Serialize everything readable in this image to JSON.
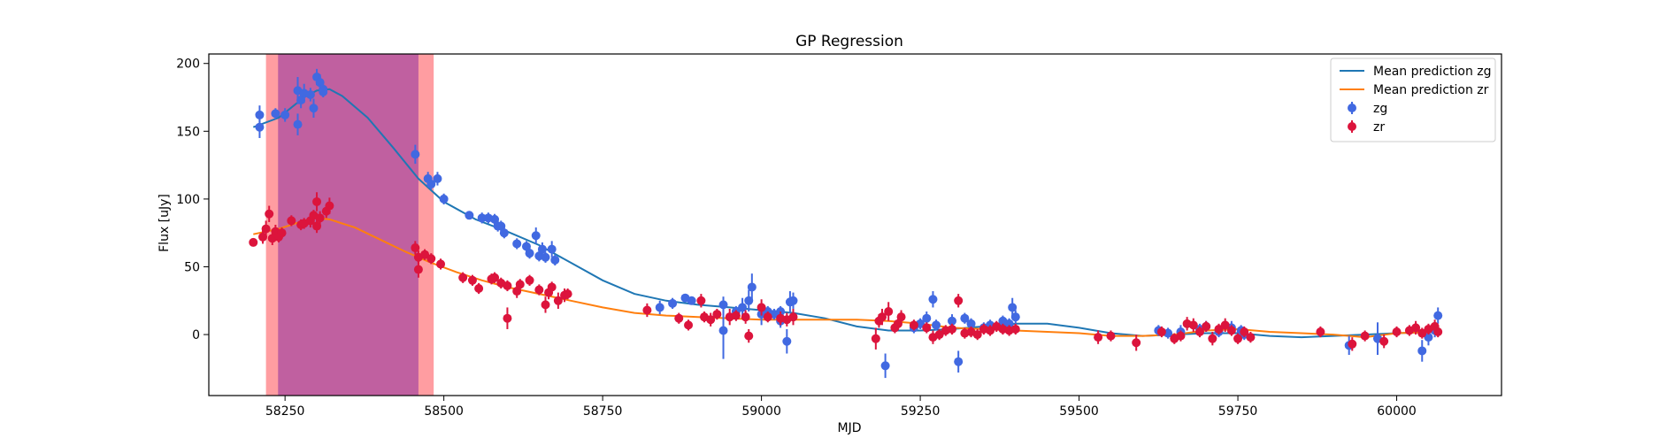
{
  "chart_data": {
    "type": "scatter",
    "title": "GP Regression",
    "xlabel": "MJD",
    "ylabel": "Flux [uJy]",
    "xlim": [
      58130,
      60165
    ],
    "ylim": [
      -45,
      207
    ],
    "xticks": [
      58250,
      58500,
      58750,
      59000,
      59250,
      59500,
      59750,
      60000
    ],
    "yticks": [
      0,
      50,
      100,
      150,
      200
    ],
    "grid": false,
    "legend_position": "top-right",
    "legend": [
      {
        "label": "Mean prediction zg",
        "kind": "line",
        "color": "#1f77b4"
      },
      {
        "label": "Mean prediction zr",
        "kind": "line",
        "color": "#ff7f0e"
      },
      {
        "label": "zg",
        "kind": "marker",
        "color": "#4169e1"
      },
      {
        "label": "zr",
        "kind": "marker",
        "color": "#dc143c"
      }
    ],
    "shaded_regions": [
      {
        "x0": 58220,
        "x1": 58484,
        "color": "#ff9da1"
      },
      {
        "x0": 58239,
        "x1": 58460,
        "color": "#c060a0"
      }
    ],
    "lines": [
      {
        "name": "Mean prediction zg",
        "color": "#1f77b4",
        "x": [
          58200,
          58240,
          58280,
          58300,
          58320,
          58340,
          58380,
          58420,
          58460,
          58500,
          58550,
          58600,
          58650,
          58700,
          58750,
          58800,
          58850,
          58900,
          58950,
          59000,
          59050,
          59100,
          59150,
          59200,
          59250,
          59300,
          59350,
          59400,
          59450,
          59500,
          59550,
          59600,
          59650,
          59700,
          59750,
          59800,
          59850,
          59900,
          59950,
          60000,
          60065
        ],
        "y": [
          153,
          160,
          175,
          180,
          181,
          176,
          160,
          138,
          115,
          98,
          85,
          76,
          66,
          53,
          40,
          30,
          25,
          22,
          20,
          18,
          16,
          12,
          6,
          3,
          3,
          4,
          6,
          8,
          8,
          5,
          1,
          -1,
          0,
          1,
          1,
          -1,
          -2,
          -1,
          0,
          1,
          2
        ]
      },
      {
        "name": "Mean prediction zr",
        "color": "#ff7f0e",
        "x": [
          58200,
          58240,
          58280,
          58300,
          58320,
          58360,
          58400,
          58440,
          58480,
          58520,
          58560,
          58600,
          58650,
          58700,
          58750,
          58800,
          58850,
          58900,
          58950,
          59000,
          59050,
          59100,
          59150,
          59200,
          59250,
          59300,
          59350,
          59400,
          59450,
          59500,
          59550,
          59600,
          59650,
          59700,
          59750,
          59800,
          59850,
          59900,
          59950,
          60000,
          60065
        ],
        "y": [
          74,
          78,
          84,
          86,
          85,
          79,
          70,
          61,
          53,
          46,
          40,
          35,
          30,
          25,
          20,
          16,
          14,
          13,
          12,
          11,
          11,
          11,
          11,
          10,
          8,
          5,
          4,
          3,
          2,
          1,
          -1,
          -1,
          0,
          3,
          4,
          2,
          1,
          0,
          -2,
          1,
          2
        ]
      }
    ],
    "series": [
      {
        "name": "zg",
        "color": "#4169e1",
        "points": [
          [
            58210,
            162,
            7
          ],
          [
            58210,
            153,
            8
          ],
          [
            58235,
            163,
            4
          ],
          [
            58250,
            162,
            5
          ],
          [
            58270,
            155,
            8
          ],
          [
            58270,
            180,
            10
          ],
          [
            58275,
            173,
            6
          ],
          [
            58280,
            178,
            7
          ],
          [
            58290,
            177,
            5
          ],
          [
            58295,
            167,
            7
          ],
          [
            58300,
            190,
            6
          ],
          [
            58305,
            186,
            6
          ],
          [
            58310,
            181,
            4
          ],
          [
            58310,
            179,
            4
          ],
          [
            58455,
            133,
            7
          ],
          [
            58475,
            115,
            5
          ],
          [
            58480,
            111,
            4
          ],
          [
            58490,
            115,
            5
          ],
          [
            58500,
            100,
            4
          ],
          [
            58540,
            88,
            3
          ],
          [
            58560,
            86,
            4
          ],
          [
            58570,
            86,
            4
          ],
          [
            58580,
            85,
            4
          ],
          [
            58585,
            80,
            4
          ],
          [
            58590,
            80,
            4
          ],
          [
            58595,
            75,
            4
          ],
          [
            58615,
            67,
            4
          ],
          [
            58630,
            65,
            4
          ],
          [
            58635,
            60,
            4
          ],
          [
            58645,
            73,
            6
          ],
          [
            58650,
            58,
            4
          ],
          [
            58655,
            63,
            5
          ],
          [
            58660,
            57,
            4
          ],
          [
            58670,
            63,
            6
          ],
          [
            58675,
            55,
            4
          ],
          [
            58840,
            20,
            5
          ],
          [
            58860,
            23,
            4
          ],
          [
            58880,
            27,
            3
          ],
          [
            58890,
            25,
            3
          ],
          [
            58940,
            3,
            21
          ],
          [
            58940,
            22,
            6
          ],
          [
            58960,
            17,
            4
          ],
          [
            58970,
            20,
            7
          ],
          [
            58980,
            25,
            8
          ],
          [
            58985,
            35,
            10
          ],
          [
            59000,
            15,
            8
          ],
          [
            59010,
            17,
            4
          ],
          [
            59020,
            15,
            4
          ],
          [
            59030,
            10,
            5
          ],
          [
            59030,
            17,
            4
          ],
          [
            59040,
            -5,
            9
          ],
          [
            59045,
            24,
            8
          ],
          [
            59050,
            25,
            6
          ],
          [
            59195,
            -23,
            9
          ],
          [
            59240,
            5,
            4
          ],
          [
            59250,
            8,
            4
          ],
          [
            59260,
            12,
            5
          ],
          [
            59270,
            26,
            6
          ],
          [
            59275,
            7,
            4
          ],
          [
            59300,
            10,
            5
          ],
          [
            59310,
            -20,
            8
          ],
          [
            59320,
            12,
            4
          ],
          [
            59330,
            8,
            4
          ],
          [
            59350,
            5,
            4
          ],
          [
            59360,
            7,
            4
          ],
          [
            59380,
            10,
            4
          ],
          [
            59390,
            8,
            4
          ],
          [
            59395,
            20,
            7
          ],
          [
            59400,
            13,
            5
          ],
          [
            59625,
            3,
            4
          ],
          [
            59640,
            1,
            4
          ],
          [
            59660,
            2,
            5
          ],
          [
            59690,
            4,
            4
          ],
          [
            59700,
            6,
            4
          ],
          [
            59720,
            2,
            4
          ],
          [
            59740,
            5,
            5
          ],
          [
            59755,
            3,
            4
          ],
          [
            59760,
            0,
            4
          ],
          [
            59925,
            -8,
            7
          ],
          [
            59970,
            -3,
            12
          ],
          [
            60040,
            -12,
            8
          ],
          [
            60050,
            -2,
            6
          ],
          [
            60060,
            3,
            5
          ],
          [
            60065,
            14,
            6
          ]
        ]
      },
      {
        "name": "zr",
        "color": "#dc143c",
        "points": [
          [
            58200,
            68,
            3
          ],
          [
            58215,
            72,
            5
          ],
          [
            58220,
            78,
            6
          ],
          [
            58225,
            89,
            6
          ],
          [
            58230,
            71,
            5
          ],
          [
            58235,
            76,
            5
          ],
          [
            58240,
            72,
            4
          ],
          [
            58245,
            75,
            4
          ],
          [
            58260,
            84,
            4
          ],
          [
            58275,
            81,
            4
          ],
          [
            58280,
            82,
            4
          ],
          [
            58290,
            84,
            5
          ],
          [
            58295,
            88,
            4
          ],
          [
            58300,
            80,
            5
          ],
          [
            58300,
            98,
            7
          ],
          [
            58305,
            86,
            5
          ],
          [
            58315,
            91,
            5
          ],
          [
            58320,
            95,
            6
          ],
          [
            58455,
            64,
            5
          ],
          [
            58460,
            57,
            5
          ],
          [
            58460,
            48,
            6
          ],
          [
            58470,
            59,
            4
          ],
          [
            58480,
            56,
            4
          ],
          [
            58495,
            52,
            4
          ],
          [
            58530,
            42,
            4
          ],
          [
            58545,
            40,
            4
          ],
          [
            58555,
            34,
            4
          ],
          [
            58575,
            41,
            4
          ],
          [
            58580,
            42,
            4
          ],
          [
            58590,
            38,
            4
          ],
          [
            58600,
            36,
            4
          ],
          [
            58600,
            12,
            8
          ],
          [
            58615,
            32,
            5
          ],
          [
            58620,
            37,
            4
          ],
          [
            58635,
            40,
            4
          ],
          [
            58650,
            33,
            4
          ],
          [
            58660,
            22,
            6
          ],
          [
            58665,
            31,
            5
          ],
          [
            58670,
            35,
            4
          ],
          [
            58680,
            25,
            6
          ],
          [
            58690,
            29,
            5
          ],
          [
            58695,
            30,
            4
          ],
          [
            58820,
            18,
            5
          ],
          [
            58870,
            12,
            4
          ],
          [
            58885,
            7,
            4
          ],
          [
            58905,
            25,
            5
          ],
          [
            58910,
            13,
            4
          ],
          [
            58920,
            11,
            5
          ],
          [
            58930,
            15,
            4
          ],
          [
            58950,
            13,
            6
          ],
          [
            58960,
            14,
            4
          ],
          [
            58975,
            13,
            5
          ],
          [
            58980,
            -1,
            5
          ],
          [
            59000,
            20,
            6
          ],
          [
            59010,
            13,
            4
          ],
          [
            59030,
            12,
            5
          ],
          [
            59040,
            11,
            5
          ],
          [
            59050,
            13,
            6
          ],
          [
            59180,
            -3,
            8
          ],
          [
            59185,
            10,
            5
          ],
          [
            59190,
            13,
            6
          ],
          [
            59200,
            17,
            7
          ],
          [
            59210,
            5,
            4
          ],
          [
            59215,
            8,
            4
          ],
          [
            59220,
            13,
            5
          ],
          [
            59240,
            7,
            4
          ],
          [
            59260,
            5,
            4
          ],
          [
            59270,
            -2,
            5
          ],
          [
            59280,
            0,
            4
          ],
          [
            59290,
            3,
            4
          ],
          [
            59300,
            4,
            4
          ],
          [
            59310,
            25,
            5
          ],
          [
            59320,
            1,
            4
          ],
          [
            59330,
            2,
            4
          ],
          [
            59340,
            0,
            4
          ],
          [
            59350,
            4,
            4
          ],
          [
            59360,
            3,
            4
          ],
          [
            59370,
            6,
            4
          ],
          [
            59380,
            4,
            4
          ],
          [
            59390,
            3,
            4
          ],
          [
            59400,
            4,
            4
          ],
          [
            59530,
            -2,
            5
          ],
          [
            59550,
            -1,
            4
          ],
          [
            59590,
            -6,
            6
          ],
          [
            59630,
            2,
            4
          ],
          [
            59650,
            -3,
            4
          ],
          [
            59660,
            -1,
            4
          ],
          [
            59670,
            8,
            5
          ],
          [
            59680,
            7,
            5
          ],
          [
            59690,
            2,
            4
          ],
          [
            59700,
            6,
            4
          ],
          [
            59710,
            -3,
            5
          ],
          [
            59720,
            4,
            4
          ],
          [
            59730,
            7,
            5
          ],
          [
            59740,
            3,
            4
          ],
          [
            59750,
            -3,
            4
          ],
          [
            59760,
            2,
            4
          ],
          [
            59770,
            -2,
            4
          ],
          [
            59880,
            2,
            4
          ],
          [
            59930,
            -7,
            5
          ],
          [
            59950,
            -1,
            4
          ],
          [
            59980,
            -5,
            5
          ],
          [
            60000,
            2,
            4
          ],
          [
            60020,
            3,
            4
          ],
          [
            60030,
            5,
            5
          ],
          [
            60040,
            1,
            4
          ],
          [
            60050,
            4,
            4
          ],
          [
            60060,
            6,
            5
          ],
          [
            60065,
            2,
            4
          ]
        ]
      }
    ]
  }
}
